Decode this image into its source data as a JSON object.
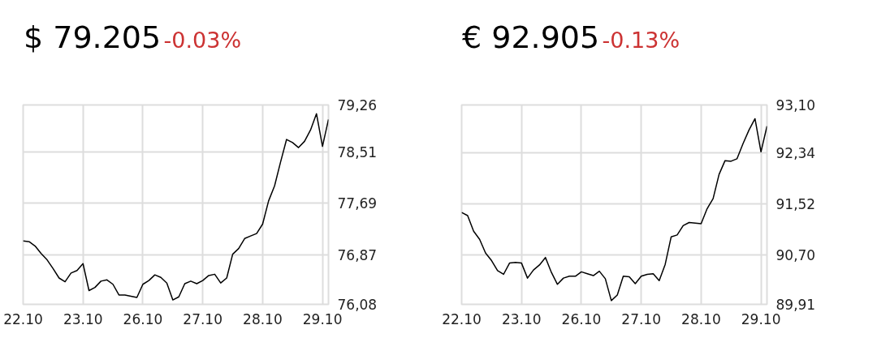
{
  "chart_data": [
    {
      "type": "line",
      "title": "$ 79.205",
      "annotations": [
        "-0.03%"
      ],
      "color": "#000000",
      "grid": true,
      "ylim": [
        76.08,
        79.26
      ],
      "yticks": [
        {
          "value": 76.08,
          "label": "76,08"
        },
        {
          "value": 76.87,
          "label": "76,87"
        },
        {
          "value": 77.69,
          "label": "77,69"
        },
        {
          "value": 78.51,
          "label": "78,51"
        },
        {
          "value": 79.26,
          "label": "79,26"
        }
      ],
      "categories": [
        "22.10",
        null,
        null,
        null,
        null,
        null,
        null,
        null,
        null,
        null,
        "23.10",
        null,
        null,
        null,
        null,
        null,
        null,
        null,
        null,
        null,
        "26.10",
        null,
        null,
        null,
        null,
        null,
        null,
        null,
        null,
        null,
        "27.10",
        null,
        null,
        null,
        null,
        null,
        null,
        null,
        null,
        null,
        "28.10",
        null,
        null,
        null,
        null,
        null,
        null,
        null,
        null,
        null,
        "29.10",
        null
      ],
      "values": [
        77.09,
        77.08,
        77.01,
        76.89,
        76.79,
        76.65,
        76.5,
        76.44,
        76.58,
        76.62,
        76.73,
        76.3,
        76.35,
        76.45,
        76.47,
        76.4,
        76.23,
        76.23,
        76.21,
        76.19,
        76.4,
        76.46,
        76.55,
        76.51,
        76.42,
        76.15,
        76.2,
        76.41,
        76.45,
        76.41,
        76.46,
        76.54,
        76.56,
        76.42,
        76.5,
        76.88,
        76.97,
        77.13,
        77.17,
        77.21,
        77.36,
        77.73,
        77.97,
        78.35,
        78.71,
        78.66,
        78.58,
        78.68,
        78.86,
        79.12,
        78.6,
        79.03
      ]
    },
    {
      "type": "line",
      "title": "€ 92.905",
      "annotations": [
        "-0.13%"
      ],
      "color": "#000000",
      "grid": true,
      "ylim": [
        89.91,
        93.1
      ],
      "yticks": [
        {
          "value": 89.91,
          "label": "89,91"
        },
        {
          "value": 90.7,
          "label": "90,70"
        },
        {
          "value": 91.52,
          "label": "91,52"
        },
        {
          "value": 92.34,
          "label": "92,34"
        },
        {
          "value": 93.1,
          "label": "93,10"
        }
      ],
      "categories": [
        "22.10",
        null,
        null,
        null,
        null,
        null,
        null,
        null,
        null,
        null,
        "23.10",
        null,
        null,
        null,
        null,
        null,
        null,
        null,
        null,
        null,
        "26.10",
        null,
        null,
        null,
        null,
        null,
        null,
        null,
        null,
        null,
        "27.10",
        null,
        null,
        null,
        null,
        null,
        null,
        null,
        null,
        null,
        "28.10",
        null,
        null,
        null,
        null,
        null,
        null,
        null,
        null,
        null,
        "29.10",
        null
      ],
      "values": [
        91.38,
        91.33,
        91.08,
        90.95,
        90.73,
        90.61,
        90.45,
        90.39,
        90.57,
        90.58,
        90.57,
        90.33,
        90.46,
        90.54,
        90.66,
        90.42,
        90.23,
        90.33,
        90.36,
        90.36,
        90.43,
        90.4,
        90.37,
        90.44,
        90.32,
        89.97,
        90.06,
        90.36,
        90.35,
        90.24,
        90.36,
        90.39,
        90.4,
        90.29,
        90.55,
        90.99,
        91.02,
        91.17,
        91.22,
        91.21,
        91.2,
        91.44,
        91.6,
        91.99,
        92.21,
        92.2,
        92.24,
        92.48,
        92.7,
        92.88,
        92.35,
        92.76
      ]
    }
  ]
}
